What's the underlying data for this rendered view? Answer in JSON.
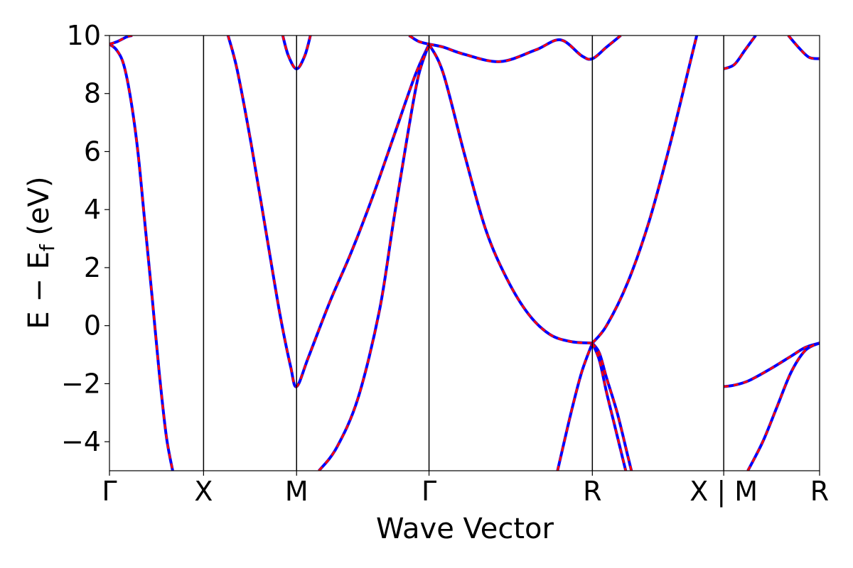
{
  "chart_data": {
    "type": "line",
    "title": "",
    "xlabel": "Wave Vector",
    "ylabel_parts": {
      "main": "E − E",
      "subscript": "f",
      "suffix": " (eV)"
    },
    "ylim": [
      -5,
      10
    ],
    "yticks": [
      {
        "value": -4,
        "label": "−4"
      },
      {
        "value": -2,
        "label": "−2"
      },
      {
        "value": 0,
        "label": "0"
      },
      {
        "value": 2,
        "label": "2"
      },
      {
        "value": 4,
        "label": "4"
      },
      {
        "value": 6,
        "label": "6"
      },
      {
        "value": 8,
        "label": "8"
      },
      {
        "value": 10,
        "label": "10"
      }
    ],
    "xlim": [
      0,
      1
    ],
    "kpoints": [
      {
        "pos": 0.0,
        "label": "Γ"
      },
      {
        "pos": 0.1325,
        "label": "X"
      },
      {
        "pos": 0.2635,
        "label": "M"
      },
      {
        "pos": 0.45,
        "label": "Γ"
      },
      {
        "pos": 0.68,
        "label": "R"
      },
      {
        "pos": 0.865,
        "label": "X | M"
      },
      {
        "pos": 1.0,
        "label": "R"
      }
    ],
    "grid": false,
    "legend": "none",
    "colors": {
      "solid_series": "#ff0000",
      "dashed_series": "#0000ff",
      "axes": "#000000"
    },
    "series_styles": [
      {
        "color": "#0000ff",
        "dash": "none",
        "width": 4
      },
      {
        "color": "#ff0000",
        "dash": "7 7",
        "width": 3
      }
    ],
    "bands": [
      [
        [
          0.0,
          9.7
        ],
        [
          0.01,
          9.5
        ],
        [
          0.02,
          9.0
        ],
        [
          0.03,
          7.8
        ],
        [
          0.04,
          6.0
        ],
        [
          0.05,
          3.5
        ],
        [
          0.06,
          1.0
        ],
        [
          0.07,
          -1.6
        ],
        [
          0.08,
          -3.8
        ],
        [
          0.089,
          -5.0
        ]
      ],
      [
        [
          0.0,
          9.7
        ],
        [
          0.012,
          9.8
        ],
        [
          0.024,
          9.95
        ],
        [
          0.032,
          10.0
        ]
      ],
      [
        [
          0.167,
          10.0
        ],
        [
          0.18,
          8.8
        ],
        [
          0.2,
          6.2
        ],
        [
          0.22,
          3.3
        ],
        [
          0.24,
          0.4
        ],
        [
          0.255,
          -1.4
        ],
        [
          0.2635,
          -2.1
        ],
        [
          0.28,
          -1.1
        ],
        [
          0.31,
          0.8
        ],
        [
          0.34,
          2.5
        ],
        [
          0.37,
          4.4
        ],
        [
          0.4,
          6.5
        ],
        [
          0.43,
          8.6
        ],
        [
          0.45,
          9.7
        ]
      ],
      [
        [
          0.244,
          10.0
        ],
        [
          0.252,
          9.3
        ],
        [
          0.2635,
          8.85
        ],
        [
          0.275,
          9.3
        ],
        [
          0.283,
          10.0
        ]
      ],
      [
        [
          0.295,
          -5.0
        ],
        [
          0.32,
          -4.2
        ],
        [
          0.35,
          -2.5
        ],
        [
          0.38,
          0.5
        ],
        [
          0.4,
          3.6
        ],
        [
          0.42,
          6.6
        ],
        [
          0.435,
          8.6
        ],
        [
          0.45,
          9.7
        ]
      ],
      [
        [
          0.422,
          10.0
        ],
        [
          0.435,
          9.8
        ],
        [
          0.45,
          9.7
        ]
      ],
      [
        [
          0.45,
          9.7
        ],
        [
          0.47,
          9.6
        ],
        [
          0.5,
          9.35
        ],
        [
          0.55,
          9.1
        ],
        [
          0.6,
          9.5
        ],
        [
          0.635,
          9.85
        ],
        [
          0.665,
          9.3
        ],
        [
          0.68,
          9.2
        ],
        [
          0.7,
          9.6
        ],
        [
          0.72,
          10.0
        ]
      ],
      [
        [
          0.45,
          9.7
        ],
        [
          0.47,
          8.7
        ],
        [
          0.5,
          5.9
        ],
        [
          0.53,
          3.3
        ],
        [
          0.56,
          1.6
        ],
        [
          0.59,
          0.4
        ],
        [
          0.62,
          -0.3
        ],
        [
          0.65,
          -0.55
        ],
        [
          0.68,
          -0.6
        ]
      ],
      [
        [
          0.68,
          -0.6
        ],
        [
          0.7,
          0.0
        ],
        [
          0.73,
          1.5
        ],
        [
          0.76,
          3.6
        ],
        [
          0.79,
          6.3
        ],
        [
          0.82,
          9.3
        ],
        [
          0.827,
          10.0
        ]
      ],
      [
        [
          0.631,
          -5.0
        ],
        [
          0.65,
          -3.0
        ],
        [
          0.665,
          -1.6
        ],
        [
          0.68,
          -0.6
        ]
      ],
      [
        [
          0.68,
          -0.6
        ],
        [
          0.69,
          -0.95
        ],
        [
          0.7,
          -1.8
        ],
        [
          0.715,
          -3.0
        ],
        [
          0.73,
          -4.5
        ],
        [
          0.735,
          -5.0
        ]
      ],
      [
        [
          0.68,
          -0.6
        ],
        [
          0.69,
          -1.2
        ],
        [
          0.7,
          -2.3
        ],
        [
          0.71,
          -3.3
        ],
        [
          0.72,
          -4.3
        ],
        [
          0.727,
          -5.0
        ]
      ],
      [
        [
          0.865,
          8.85
        ],
        [
          0.88,
          9.0
        ],
        [
          0.895,
          9.5
        ],
        [
          0.91,
          10.0
        ]
      ],
      [
        [
          0.956,
          10.0
        ],
        [
          0.97,
          9.6
        ],
        [
          0.985,
          9.25
        ],
        [
          1.0,
          9.2
        ]
      ],
      [
        [
          0.865,
          -2.1
        ],
        [
          0.88,
          -2.05
        ],
        [
          0.9,
          -1.9
        ],
        [
          0.93,
          -1.5
        ],
        [
          0.96,
          -1.05
        ],
        [
          0.98,
          -0.75
        ],
        [
          1.0,
          -0.6
        ]
      ],
      [
        [
          0.899,
          -5.0
        ],
        [
          0.92,
          -4.0
        ],
        [
          0.94,
          -2.8
        ],
        [
          0.96,
          -1.6
        ],
        [
          0.98,
          -0.85
        ],
        [
          1.0,
          -0.6
        ]
      ]
    ]
  }
}
